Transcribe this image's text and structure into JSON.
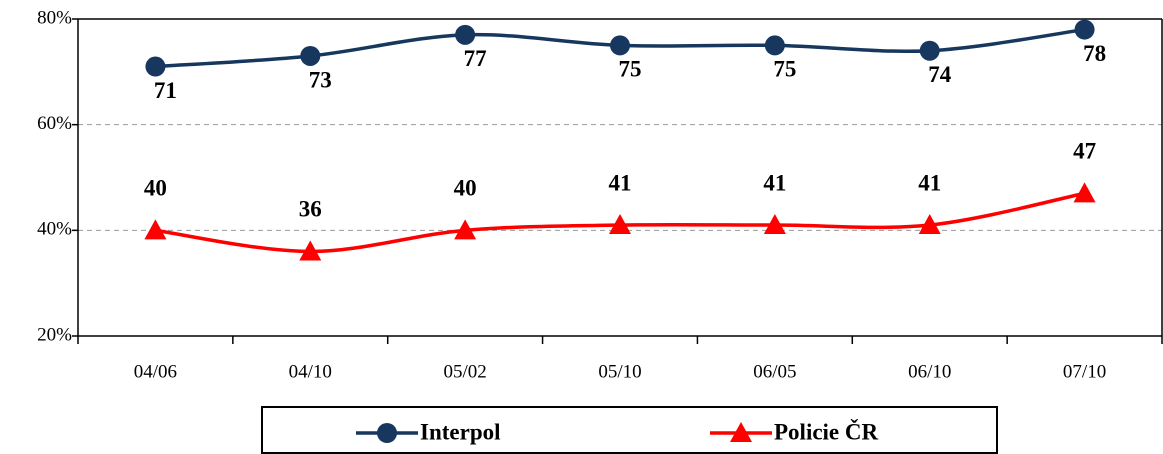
{
  "chart_data": {
    "type": "line",
    "categories": [
      "04/06",
      "04/10",
      "05/02",
      "05/10",
      "06/05",
      "06/10",
      "07/10"
    ],
    "series": [
      {
        "name": "Interpol",
        "color": "#17375e",
        "marker": "circle",
        "values": [
          71,
          73,
          77,
          75,
          75,
          74,
          78
        ]
      },
      {
        "name": "Policie ČR",
        "color": "#ff0000",
        "marker": "triangle",
        "values": [
          40,
          36,
          40,
          41,
          41,
          41,
          47
        ]
      }
    ],
    "ylim": [
      20,
      80
    ],
    "yticks": [
      {
        "value": 20,
        "label": "20%"
      },
      {
        "value": 40,
        "label": "40%"
      },
      {
        "value": 60,
        "label": "60%"
      },
      {
        "value": 80,
        "label": "80%"
      }
    ],
    "grid": true,
    "smooth": true,
    "legend": "bottom"
  }
}
